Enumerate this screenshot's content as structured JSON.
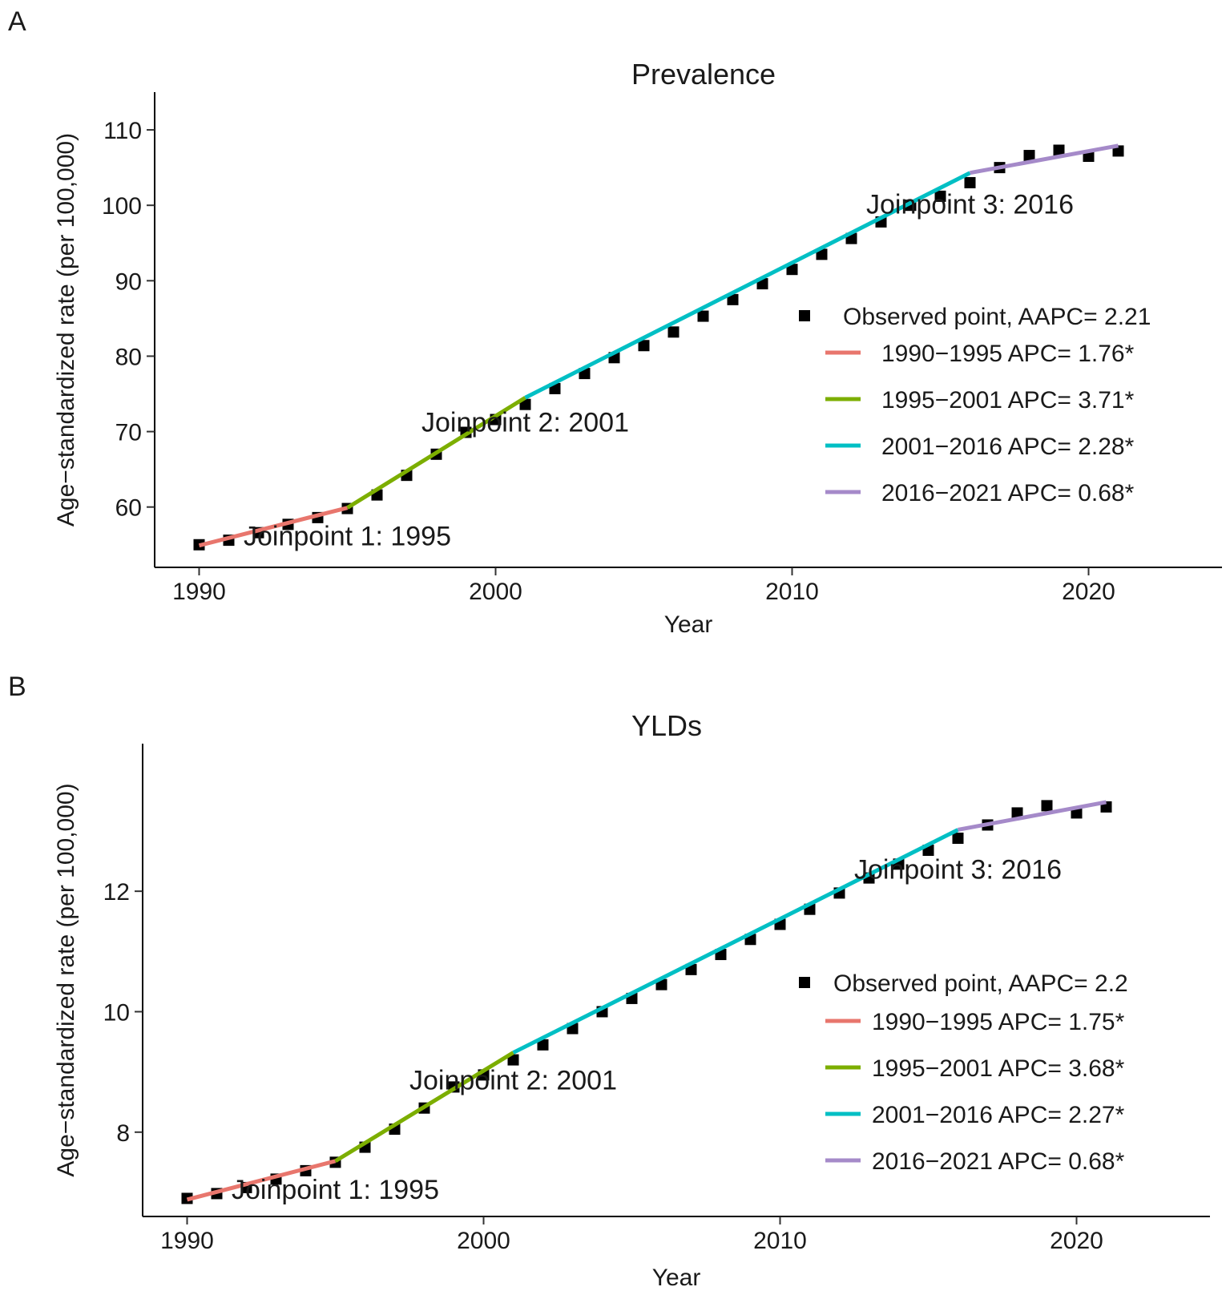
{
  "chart_data": [
    {
      "panel_label": "A",
      "type": "line",
      "title": "Prevalence",
      "xlabel": "Year",
      "ylabel": "Age−standardized rate (per 100,000)",
      "xlim": [
        1988.5,
        2024.5
      ],
      "ylim": [
        52,
        115
      ],
      "xticks": [
        1990,
        2000,
        2010,
        2020
      ],
      "yticks": [
        60,
        70,
        80,
        90,
        100,
        110
      ],
      "grid": false,
      "legend_position": "right",
      "observed": {
        "x": [
          1990,
          1991,
          1992,
          1993,
          1994,
          1995,
          1996,
          1997,
          1998,
          1999,
          2000,
          2001,
          2002,
          2003,
          2004,
          2005,
          2006,
          2007,
          2008,
          2009,
          2010,
          2011,
          2012,
          2013,
          2014,
          2015,
          2016,
          2017,
          2018,
          2019,
          2020,
          2021
        ],
        "y": [
          55.0,
          55.6,
          56.6,
          57.7,
          58.6,
          59.8,
          61.6,
          64.2,
          67.0,
          69.9,
          71.6,
          73.6,
          75.7,
          77.7,
          79.8,
          81.4,
          83.2,
          85.3,
          87.5,
          89.6,
          91.5,
          93.5,
          95.6,
          97.8,
          100.0,
          101.2,
          103.0,
          105.0,
          106.6,
          107.3,
          106.5,
          107.2
        ]
      },
      "segments": [
        {
          "name": "1990−1995",
          "color": "#E8766D",
          "x": [
            1990,
            1995
          ],
          "y": [
            54.9,
            59.9
          ]
        },
        {
          "name": "1995−2001",
          "color": "#7CAE00",
          "x": [
            1995,
            2001
          ],
          "y": [
            59.9,
            74.5
          ]
        },
        {
          "name": "2001−2016",
          "color": "#00BFC4",
          "x": [
            2001,
            2016
          ],
          "y": [
            74.5,
            104.3
          ]
        },
        {
          "name": "2016−2021",
          "color": "#A58AC9",
          "x": [
            2016,
            2021
          ],
          "y": [
            104.3,
            107.9
          ]
        }
      ],
      "annotations": [
        {
          "text": "Joinpoint 1: 1995",
          "x": 1995,
          "y": 56.2
        },
        {
          "text": "Joinpoint 2: 2001",
          "x": 2001,
          "y": 71.3
        },
        {
          "text": "Joinpoint 3: 2016",
          "x": 2016,
          "y": 100.2
        }
      ],
      "legend": [
        {
          "kind": "point",
          "label": "Observed point, AAPC= 2.21"
        },
        {
          "kind": "line",
          "color": "#E8766D",
          "label": "1990−1995 APC= 1.76*"
        },
        {
          "kind": "line",
          "color": "#7CAE00",
          "label": "1995−2001 APC= 3.71*"
        },
        {
          "kind": "line",
          "color": "#00BFC4",
          "label": "2001−2016 APC= 2.28*"
        },
        {
          "kind": "line",
          "color": "#A58AC9",
          "label": "2016−2021 APC= 0.68*"
        }
      ]
    },
    {
      "panel_label": "B",
      "type": "line",
      "title": "YLDs",
      "xlabel": "Year",
      "ylabel": "Age−standardized rate (per 100,000)",
      "xlim": [
        1988.5,
        2024.5
      ],
      "ylim": [
        6.6,
        14.45
      ],
      "xticks": [
        1990,
        2000,
        2010,
        2020
      ],
      "yticks": [
        8,
        10,
        12
      ],
      "grid": false,
      "legend_position": "right",
      "observed": {
        "x": [
          1990,
          1991,
          1992,
          1993,
          1994,
          1995,
          1996,
          1997,
          1998,
          1999,
          2000,
          2001,
          2002,
          2003,
          2004,
          2005,
          2006,
          2007,
          2008,
          2009,
          2010,
          2011,
          2012,
          2013,
          2014,
          2015,
          2016,
          2017,
          2018,
          2019,
          2020,
          2021
        ],
        "y": [
          6.9,
          6.98,
          7.08,
          7.22,
          7.36,
          7.5,
          7.75,
          8.05,
          8.4,
          8.75,
          8.95,
          9.2,
          9.45,
          9.72,
          10.0,
          10.22,
          10.45,
          10.7,
          10.95,
          11.2,
          11.45,
          11.7,
          11.97,
          12.22,
          12.45,
          12.68,
          12.88,
          13.1,
          13.3,
          13.42,
          13.3,
          13.4
        ]
      },
      "segments": [
        {
          "name": "1990−1995",
          "color": "#E8766D",
          "x": [
            1990,
            1995
          ],
          "y": [
            6.88,
            7.52
          ]
        },
        {
          "name": "1995−2001",
          "color": "#7CAE00",
          "x": [
            1995,
            2001
          ],
          "y": [
            7.52,
            9.32
          ]
        },
        {
          "name": "2001−2016",
          "color": "#00BFC4",
          "x": [
            2001,
            2016
          ],
          "y": [
            9.32,
            13.02
          ]
        },
        {
          "name": "2016−2021",
          "color": "#A58AC9",
          "x": [
            2016,
            2021
          ],
          "y": [
            13.02,
            13.48
          ]
        }
      ],
      "annotations": [
        {
          "text": "Joinpoint 1: 1995",
          "x": 1995,
          "y": 7.05
        },
        {
          "text": "Joinpoint 2: 2001",
          "x": 2001,
          "y": 8.87
        },
        {
          "text": "Joinpoint 3: 2016",
          "x": 2016,
          "y": 12.37
        }
      ],
      "legend": [
        {
          "kind": "point",
          "label": "Observed point, AAPC= 2.2"
        },
        {
          "kind": "line",
          "color": "#E8766D",
          "label": "1990−1995 APC= 1.75*"
        },
        {
          "kind": "line",
          "color": "#7CAE00",
          "label": "1995−2001 APC= 3.68*"
        },
        {
          "kind": "line",
          "color": "#00BFC4",
          "label": "2001−2016 APC= 2.27*"
        },
        {
          "kind": "line",
          "color": "#A58AC9",
          "label": "2016−2021 APC= 0.68*"
        }
      ]
    }
  ]
}
